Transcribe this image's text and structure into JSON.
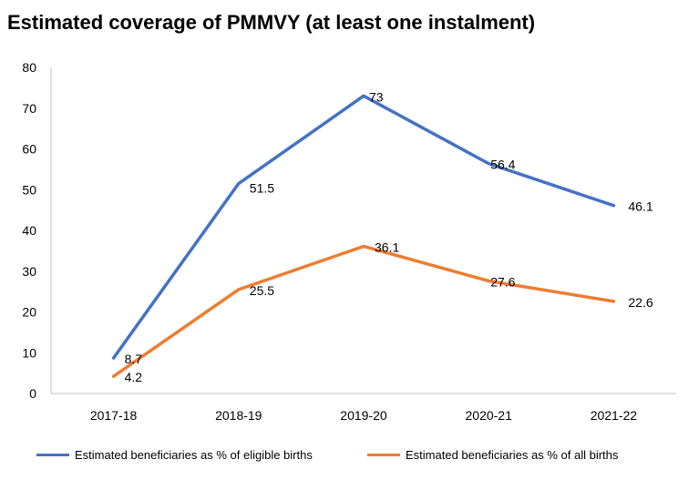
{
  "chart_data": {
    "type": "line",
    "title": "Estimated coverage of PMMVY (at least one instalment)",
    "categories": [
      "2017-18",
      "2018-19",
      "2019-20",
      "2020-21",
      "2021-22"
    ],
    "series": [
      {
        "name": "Estimated beneficiaries as % of eligible births",
        "values": [
          8.7,
          51.5,
          73,
          56.4,
          46.1
        ],
        "color": "#4472C4"
      },
      {
        "name": "Estimated beneficiaries as % of all births",
        "values": [
          4.2,
          25.5,
          36.1,
          27.6,
          22.6
        ],
        "color": "#ED7D31"
      }
    ],
    "yticks": [
      "0",
      "10",
      "20",
      "30",
      "40",
      "50",
      "60",
      "70",
      "80"
    ],
    "data_labels": [
      [
        "8.7",
        "51.5",
        "73",
        "56.4",
        "46.1"
      ],
      [
        "4.2",
        "25.5",
        "36.1",
        "27.6",
        "22.6"
      ]
    ],
    "ylim": [
      0,
      80
    ],
    "grid": false,
    "legend_position": "bottom"
  }
}
